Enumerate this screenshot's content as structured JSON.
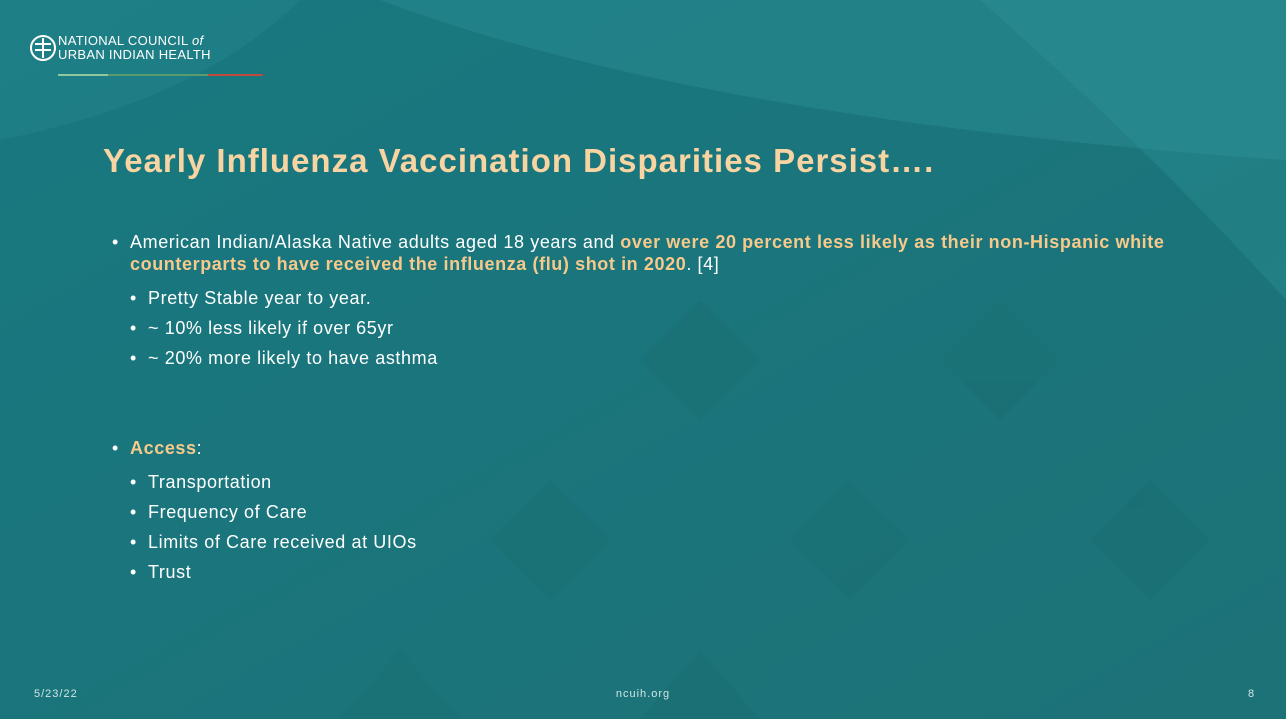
{
  "header": {
    "org_line1": "NATIONAL COUNCIL",
    "org_line1_em": "of",
    "org_line2": "URBAN INDIAN HEALTH"
  },
  "title": "Yearly Influenza Vaccination Disparities Persist….",
  "bullets": [
    {
      "runs": [
        {
          "text": "American Indian/Alaska Native adults aged 18 years and ",
          "bold": false
        },
        {
          "text": "over were 20 percent less likely as their non-Hispanic white counterparts to have received the influenza (flu) shot in 2020",
          "bold": true
        },
        {
          "text": ". [4]",
          "bold": false
        }
      ],
      "sub": [
        "Pretty Stable year to year.",
        "~ 10% less likely if over 65yr",
        "~ 20% more likely to have asthma"
      ]
    },
    {
      "runs": [
        {
          "text": "Access",
          "bold": true
        },
        {
          "text": ":",
          "bold": false
        }
      ],
      "sub": [
        "Transportation",
        "Frequency of Care",
        "Limits of Care received at UIOs",
        "Trust"
      ]
    }
  ],
  "footer": {
    "date": "5/23/22",
    "url": "ncuih.org",
    "page": 8
  }
}
